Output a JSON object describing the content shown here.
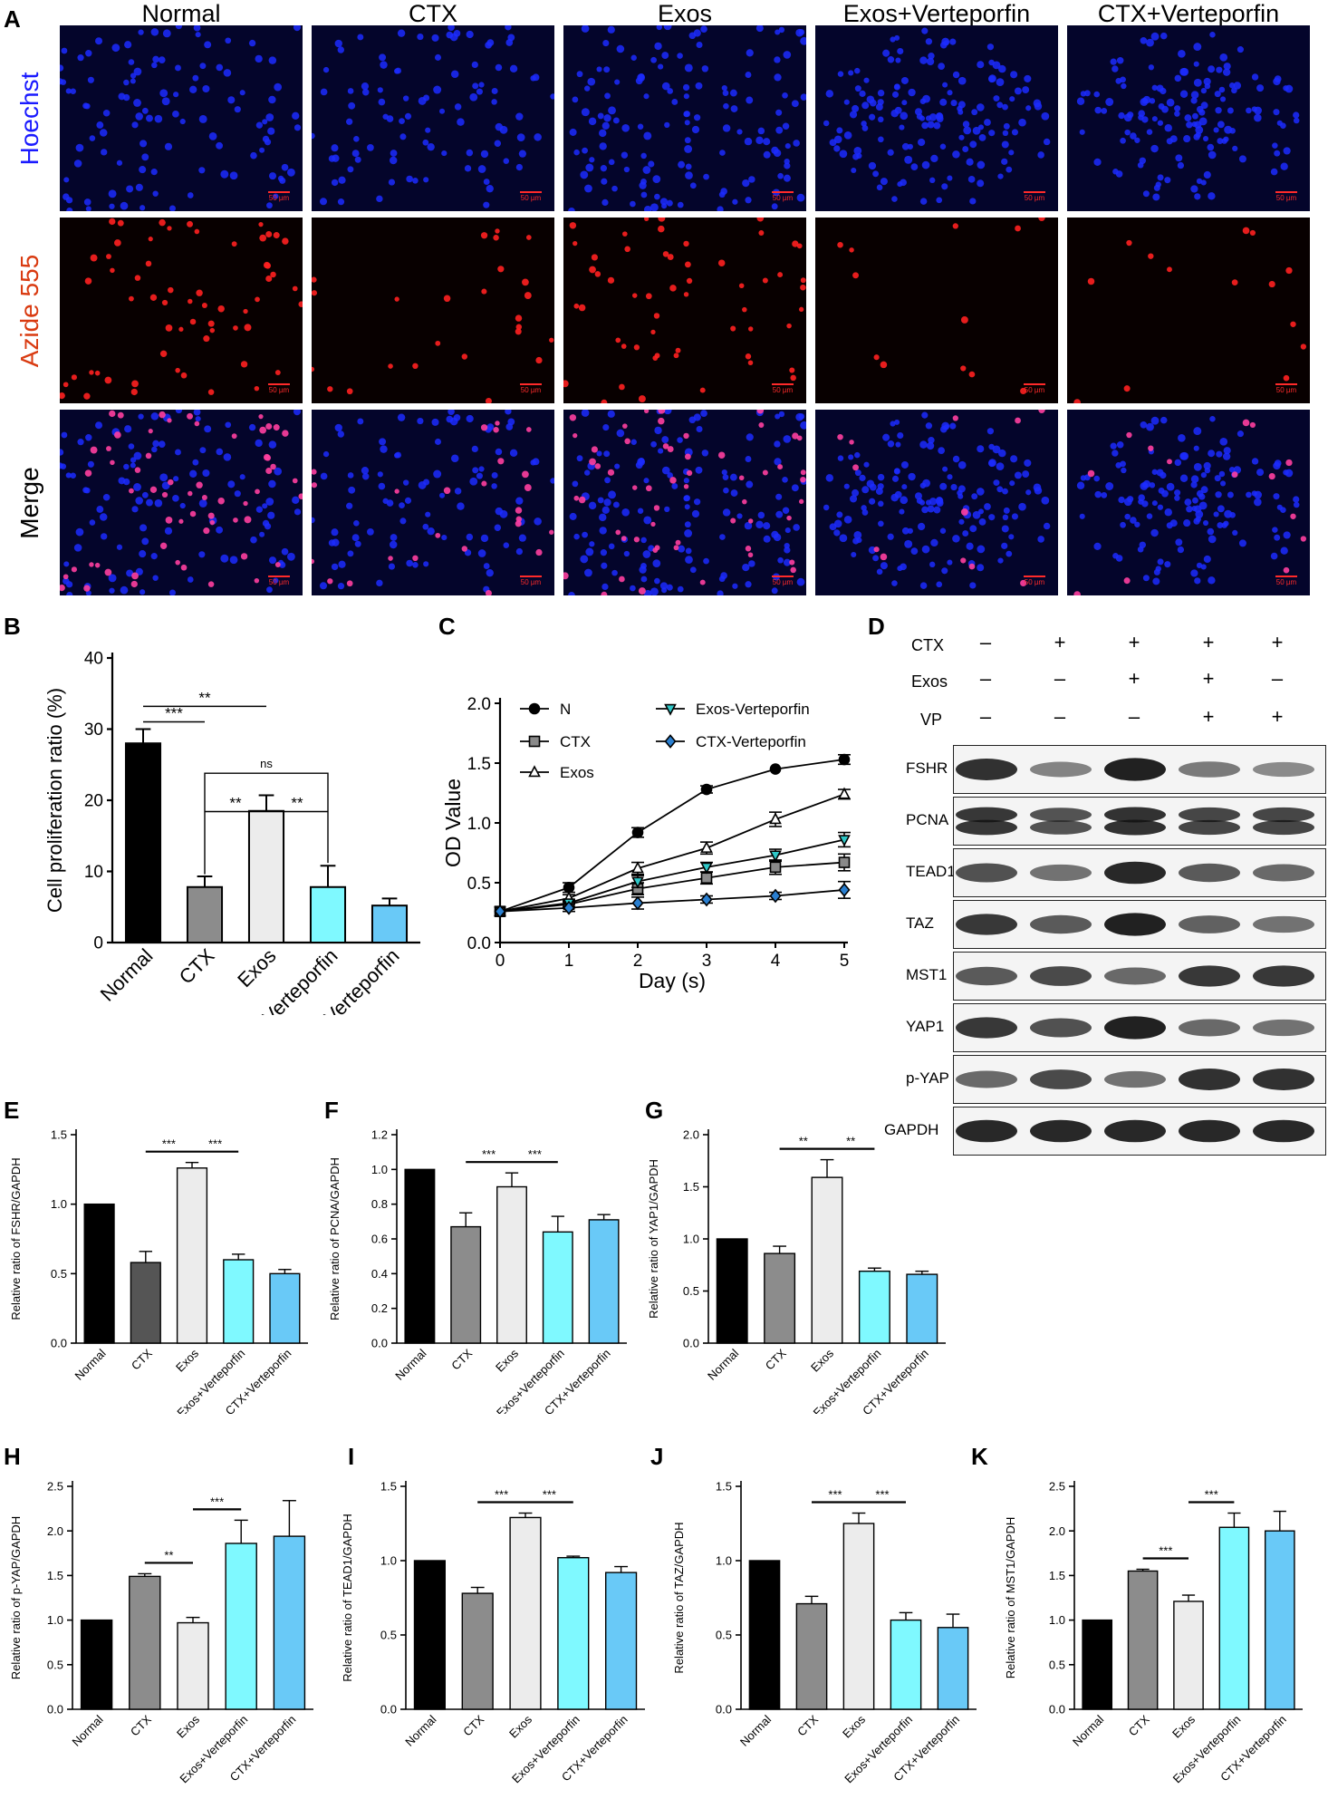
{
  "panel_a": {
    "label": "A",
    "columns": [
      "Normal",
      "CTX",
      "Exos",
      "Exos+Verteporfin",
      "CTX+Verteporfin"
    ],
    "rows": [
      {
        "name": "Hoechst",
        "color": "#1a1aff"
      },
      {
        "name": "Azide 555",
        "color": "#d93a10"
      },
      {
        "name": "Merge",
        "color": "#000000"
      }
    ],
    "scale_bar": "50 µm",
    "channel_colors": {
      "hoechst": "#1c2cff",
      "azide": "#ff2020",
      "merge_pink": "#ff3fa0"
    }
  },
  "panel_d": {
    "label": "D",
    "conditions": [
      {
        "name": "CTX",
        "signs": [
          "–",
          "+",
          "+",
          "+",
          "+"
        ]
      },
      {
        "name": "Exos",
        "signs": [
          "–",
          "–",
          "+",
          "+",
          "–"
        ]
      },
      {
        "name": "VP",
        "signs": [
          "–",
          "–",
          "–",
          "+",
          "+"
        ]
      }
    ],
    "blots": [
      {
        "name": "FSHR",
        "intensity": [
          0.85,
          0.35,
          0.95,
          0.4,
          0.3
        ]
      },
      {
        "name": "PCNA",
        "intensity": [
          0.8,
          0.6,
          0.85,
          0.7,
          0.7
        ]
      },
      {
        "name": "TEAD1",
        "intensity": [
          0.65,
          0.45,
          0.9,
          0.6,
          0.5
        ]
      },
      {
        "name": "TAZ",
        "intensity": [
          0.8,
          0.6,
          0.95,
          0.55,
          0.45
        ]
      },
      {
        "name": "MST1",
        "intensity": [
          0.6,
          0.7,
          0.5,
          0.8,
          0.8
        ]
      },
      {
        "name": "YAP1",
        "intensity": [
          0.8,
          0.65,
          0.95,
          0.5,
          0.45
        ]
      },
      {
        "name": "p-YAP",
        "intensity": [
          0.5,
          0.7,
          0.45,
          0.85,
          0.85
        ]
      },
      {
        "name": "GAPDH",
        "intensity": [
          0.9,
          0.9,
          0.9,
          0.9,
          0.9
        ]
      }
    ]
  },
  "chart_data": [
    {
      "id": "B",
      "type": "bar",
      "ylabel": "Cell proliferation ratio (%)",
      "categories": [
        "Normal",
        "CTX",
        "Exos",
        "Exos-Verteporfin",
        "CTX-Verteporfin"
      ],
      "values": [
        28.0,
        7.8,
        18.5,
        7.8,
        5.2
      ],
      "errors": [
        2.0,
        1.5,
        2.2,
        3.0,
        1.0
      ],
      "colors": [
        "#000000",
        "#8c8c8c",
        "#ececec",
        "#7ff9ff",
        "#69c9f7"
      ],
      "ylim": [
        0,
        40
      ],
      "yticks": [
        0,
        10,
        20,
        30,
        40
      ],
      "significance": [
        {
          "from": 0,
          "to": 1,
          "label": "***"
        },
        {
          "from": 0,
          "to": 2,
          "label": "**"
        },
        {
          "from": 1,
          "to": 2,
          "label": "**"
        },
        {
          "from": 2,
          "to": 3,
          "label": "**"
        },
        {
          "from": 1,
          "to": 3,
          "label": "ns"
        }
      ]
    },
    {
      "id": "C",
      "type": "line",
      "xlabel": "Day (s)",
      "ylabel": "OD Value",
      "x": [
        0,
        1,
        2,
        3,
        4,
        5
      ],
      "xlim": [
        0,
        5
      ],
      "ylim": [
        0,
        2.0
      ],
      "yticks": [
        "0.0",
        "0.5",
        "1.0",
        "1.5",
        "2.0"
      ],
      "series": [
        {
          "name": "N",
          "marker": "circle",
          "values": [
            0.26,
            0.46,
            0.92,
            1.28,
            1.45,
            1.53
          ],
          "errors": [
            0.02,
            0.04,
            0.04,
            0.03,
            0.02,
            0.04
          ]
        },
        {
          "name": "CTX",
          "marker": "square",
          "values": [
            0.26,
            0.32,
            0.45,
            0.54,
            0.63,
            0.67
          ],
          "errors": [
            0.02,
            0.03,
            0.05,
            0.05,
            0.06,
            0.07
          ]
        },
        {
          "name": "Exos",
          "marker": "triangle",
          "values": [
            0.26,
            0.37,
            0.62,
            0.79,
            1.03,
            1.24
          ],
          "errors": [
            0.02,
            0.03,
            0.05,
            0.05,
            0.06,
            0.04
          ]
        },
        {
          "name": "Exos-Verteporfin",
          "marker": "triangle-down",
          "values": [
            0.26,
            0.33,
            0.51,
            0.63,
            0.73,
            0.86
          ],
          "errors": [
            0.02,
            0.03,
            0.05,
            0.04,
            0.05,
            0.06
          ]
        },
        {
          "name": "CTX-Verteporfin",
          "marker": "diamond",
          "values": [
            0.26,
            0.29,
            0.33,
            0.36,
            0.39,
            0.44
          ],
          "errors": [
            0.02,
            0.03,
            0.05,
            0.03,
            0.03,
            0.07
          ]
        }
      ]
    },
    {
      "id": "E",
      "type": "bar",
      "ylabel": "Relative ratio of FSHR/GAPDH",
      "categories": [
        "Normal",
        "CTX",
        "Exos",
        "Exos+Verteporfin",
        "CTX+Verteporfin"
      ],
      "values": [
        1.0,
        0.58,
        1.26,
        0.6,
        0.5
      ],
      "errors": [
        0,
        0.08,
        0.04,
        0.04,
        0.03
      ],
      "colors": [
        "#000000",
        "#555555",
        "#ececec",
        "#7ff9ff",
        "#69c9f7"
      ],
      "ylim": [
        0,
        1.5
      ],
      "yticks": [
        "0.0",
        "0.5",
        "1.0",
        "1.5"
      ],
      "significance": [
        {
          "from": 1,
          "to": 2,
          "label": "***"
        },
        {
          "from": 2,
          "to": 3,
          "label": "***"
        }
      ]
    },
    {
      "id": "F",
      "type": "bar",
      "ylabel": "Relative ratio of PCNA/GAPDH",
      "categories": [
        "Normal",
        "CTX",
        "Exos",
        "Exos+Verteporfin",
        "CTX+Verteporfin"
      ],
      "values": [
        1.0,
        0.67,
        0.9,
        0.64,
        0.71
      ],
      "errors": [
        0,
        0.08,
        0.08,
        0.09,
        0.03
      ],
      "colors": [
        "#000000",
        "#8c8c8c",
        "#ececec",
        "#7ff9ff",
        "#69c9f7"
      ],
      "ylim": [
        0,
        1.2
      ],
      "yticks": [
        "0.0",
        "0.2",
        "0.4",
        "0.6",
        "0.8",
        "1.0",
        "1.2"
      ],
      "significance": [
        {
          "from": 1,
          "to": 2,
          "label": "***"
        },
        {
          "from": 2,
          "to": 3,
          "label": "***"
        }
      ]
    },
    {
      "id": "G",
      "type": "bar",
      "ylabel": "Relative ratio of YAP1/GAPDH",
      "categories": [
        "Normal",
        "CTX",
        "Exos",
        "Exos+Verteporfin",
        "CTX+Verteporfin"
      ],
      "values": [
        1.0,
        0.86,
        1.59,
        0.69,
        0.66
      ],
      "errors": [
        0,
        0.07,
        0.17,
        0.03,
        0.03
      ],
      "colors": [
        "#000000",
        "#8c8c8c",
        "#ececec",
        "#7ff9ff",
        "#69c9f7"
      ],
      "ylim": [
        0,
        2.0
      ],
      "yticks": [
        "0.0",
        "0.5",
        "1.0",
        "1.5",
        "2.0"
      ],
      "significance": [
        {
          "from": 1,
          "to": 2,
          "label": "**"
        },
        {
          "from": 2,
          "to": 3,
          "label": "**"
        }
      ]
    },
    {
      "id": "H",
      "type": "bar",
      "ylabel": "Relative ratio of p-YAP/GAPDH",
      "categories": [
        "Normal",
        "CTX",
        "Exos",
        "Exos+Verteporfin",
        "CTX+Verteporfin"
      ],
      "values": [
        1.0,
        1.49,
        0.97,
        1.86,
        1.94
      ],
      "errors": [
        0,
        0.03,
        0.06,
        0.26,
        0.4
      ],
      "colors": [
        "#000000",
        "#8c8c8c",
        "#ececec",
        "#7ff9ff",
        "#69c9f7"
      ],
      "ylim": [
        0,
        2.5
      ],
      "yticks": [
        "0.0",
        "0.5",
        "1.0",
        "1.5",
        "2.0",
        "2.5"
      ],
      "significance": [
        {
          "from": 1,
          "to": 2,
          "label": "**"
        },
        {
          "from": 2,
          "to": 3,
          "label": "***"
        }
      ]
    },
    {
      "id": "I",
      "type": "bar",
      "ylabel": "Relative ratio of TEAD1/GAPDH",
      "categories": [
        "Normal",
        "CTX",
        "Exos",
        "Exos+Verteporfin",
        "CTX+Verteporfin"
      ],
      "values": [
        1.0,
        0.78,
        1.29,
        1.02,
        0.92
      ],
      "errors": [
        0,
        0.04,
        0.03,
        0.01,
        0.04
      ],
      "colors": [
        "#000000",
        "#8c8c8c",
        "#ececec",
        "#7ff9ff",
        "#69c9f7"
      ],
      "ylim": [
        0,
        1.5
      ],
      "yticks": [
        "0.0",
        "0.5",
        "1.0",
        "1.5"
      ],
      "significance": [
        {
          "from": 1,
          "to": 2,
          "label": "***"
        },
        {
          "from": 2,
          "to": 3,
          "label": "***"
        }
      ]
    },
    {
      "id": "J",
      "type": "bar",
      "ylabel": "Relative ratio of TAZ/GAPDH",
      "categories": [
        "Normal",
        "CTX",
        "Exos",
        "Exos+Verteporfin",
        "CTX+Verteporfin"
      ],
      "values": [
        1.0,
        0.71,
        1.25,
        0.6,
        0.55
      ],
      "errors": [
        0,
        0.05,
        0.07,
        0.05,
        0.09
      ],
      "colors": [
        "#000000",
        "#8c8c8c",
        "#ececec",
        "#7ff9ff",
        "#69c9f7"
      ],
      "ylim": [
        0,
        1.5
      ],
      "yticks": [
        "0.0",
        "0.5",
        "1.0",
        "1.5"
      ],
      "significance": [
        {
          "from": 1,
          "to": 2,
          "label": "***"
        },
        {
          "from": 2,
          "to": 3,
          "label": "***"
        }
      ]
    },
    {
      "id": "K",
      "type": "bar",
      "ylabel": "Relative ratio of MST1/GAPDH",
      "categories": [
        "Normal",
        "CTX",
        "Exos",
        "Exos+Verteporfin",
        "CTX+Verteporfin"
      ],
      "values": [
        1.0,
        1.55,
        1.21,
        2.04,
        2.0
      ],
      "errors": [
        0,
        0.02,
        0.07,
        0.16,
        0.22
      ],
      "colors": [
        "#000000",
        "#8c8c8c",
        "#ececec",
        "#7ff9ff",
        "#69c9f7"
      ],
      "ylim": [
        0,
        2.5
      ],
      "yticks": [
        "0.0",
        "0.5",
        "1.0",
        "1.5",
        "2.0",
        "2.5"
      ],
      "significance": [
        {
          "from": 1,
          "to": 2,
          "label": "***"
        },
        {
          "from": 2,
          "to": 3,
          "label": "***"
        }
      ]
    }
  ]
}
